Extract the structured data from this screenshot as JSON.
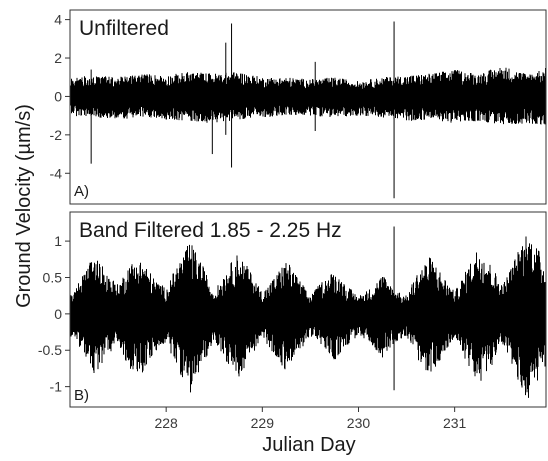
{
  "chart_data": {
    "type": "line",
    "ylabel": "Ground Velocity (µm/s)",
    "xlabel": "Julian Day",
    "xlim": [
      227.0,
      231.95
    ],
    "xticks": [
      228,
      229,
      230,
      231
    ],
    "xtick_labels": [
      "228",
      "229",
      "230",
      "231"
    ],
    "grid": false,
    "panels": [
      {
        "title": "Unfiltered",
        "letter": "A)",
        "ylim": [
          -5.6,
          4.5
        ],
        "yticks": [
          -4,
          -2,
          0,
          2,
          4
        ],
        "ytick_labels": [
          "-4",
          "-2",
          "0",
          "2",
          "4"
        ],
        "envelope": {
          "x": [
            227.0,
            227.25,
            227.5,
            227.75,
            228.0,
            228.25,
            228.5,
            228.75,
            229.0,
            229.25,
            229.5,
            229.75,
            230.0,
            230.25,
            230.5,
            230.75,
            231.0,
            231.25,
            231.5,
            231.75,
            231.95
          ],
          "upper": [
            1.0,
            1.1,
            1.0,
            1.2,
            1.1,
            1.3,
            1.2,
            1.3,
            1.0,
            1.0,
            0.9,
            1.0,
            0.8,
            1.0,
            1.1,
            1.2,
            1.4,
            1.2,
            1.6,
            1.2,
            1.5
          ],
          "lower": [
            -1.0,
            -1.1,
            -1.2,
            -1.1,
            -1.2,
            -1.3,
            -1.4,
            -1.2,
            -1.1,
            -1.0,
            -1.0,
            -1.1,
            -1.0,
            -1.1,
            -1.3,
            -1.2,
            -1.4,
            -1.3,
            -1.5,
            -1.4,
            -1.5
          ]
        },
        "spikes": [
          {
            "x": 227.22,
            "high": 1.4,
            "low": -3.5
          },
          {
            "x": 228.48,
            "high": 0.9,
            "low": -3.0
          },
          {
            "x": 228.62,
            "high": 2.8,
            "low": -2.0
          },
          {
            "x": 228.68,
            "high": 3.8,
            "low": -3.7
          },
          {
            "x": 229.55,
            "high": 1.8,
            "low": -1.8
          },
          {
            "x": 230.37,
            "high": 3.9,
            "low": -5.3
          }
        ]
      },
      {
        "title": "Band Filtered 1.85 - 2.25 Hz",
        "letter": "B)",
        "ylim": [
          -1.28,
          1.4
        ],
        "yticks": [
          -1,
          -0.5,
          0,
          0.5,
          1
        ],
        "ytick_labels": [
          "-1",
          "-0.5",
          "0",
          "0.5",
          "1"
        ],
        "envelope": {
          "x": [
            227.0,
            227.12,
            227.25,
            227.37,
            227.5,
            227.62,
            227.75,
            227.87,
            228.0,
            228.12,
            228.25,
            228.37,
            228.5,
            228.62,
            228.75,
            228.87,
            229.0,
            229.12,
            229.25,
            229.37,
            229.5,
            229.62,
            229.75,
            229.87,
            230.0,
            230.12,
            230.25,
            230.37,
            230.5,
            230.62,
            230.75,
            230.87,
            231.0,
            231.12,
            231.25,
            231.37,
            231.5,
            231.62,
            231.75,
            231.87,
            231.95
          ],
          "upper": [
            0.3,
            0.5,
            0.8,
            0.6,
            0.4,
            0.7,
            0.75,
            0.5,
            0.35,
            0.7,
            1.0,
            0.7,
            0.3,
            0.6,
            0.85,
            0.6,
            0.3,
            0.5,
            0.75,
            0.5,
            0.25,
            0.45,
            0.6,
            0.4,
            0.25,
            0.35,
            0.55,
            0.35,
            0.25,
            0.6,
            0.8,
            0.55,
            0.3,
            0.6,
            0.95,
            0.7,
            0.4,
            0.75,
            1.15,
            0.9,
            0.6
          ],
          "lower": [
            -0.3,
            -0.5,
            -0.85,
            -0.6,
            -0.45,
            -0.75,
            -0.85,
            -0.55,
            -0.4,
            -0.75,
            -1.1,
            -0.75,
            -0.35,
            -0.65,
            -0.9,
            -0.6,
            -0.35,
            -0.55,
            -0.8,
            -0.55,
            -0.3,
            -0.45,
            -0.65,
            -0.45,
            -0.3,
            -0.4,
            -0.6,
            -0.4,
            -0.3,
            -0.65,
            -0.85,
            -0.6,
            -0.35,
            -0.65,
            -1.0,
            -0.75,
            -0.45,
            -0.8,
            -1.2,
            -0.95,
            -0.7
          ]
        },
        "spikes": [
          {
            "x": 230.37,
            "high": 1.2,
            "low": -1.05
          }
        ]
      }
    ]
  }
}
